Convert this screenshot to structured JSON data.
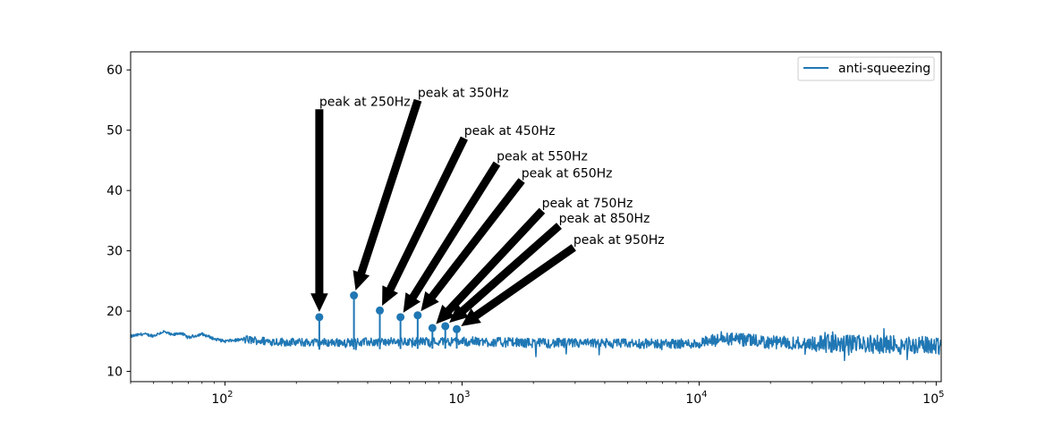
{
  "chart_data": {
    "type": "line",
    "title": "",
    "xlabel": "",
    "ylabel": "",
    "x_scale": "log",
    "xlim": [
      40,
      105000
    ],
    "ylim": [
      8.3,
      63
    ],
    "grid": false,
    "legend": {
      "placement": "top-right",
      "entries": [
        "anti-squeezing"
      ]
    },
    "colors": {
      "series": "#1f77b4",
      "arrow": "#000000"
    },
    "x_ticks": [
      {
        "value": 100,
        "base": "10",
        "exp": "2"
      },
      {
        "value": 1000,
        "base": "10",
        "exp": "3"
      },
      {
        "value": 10000,
        "base": "10",
        "exp": "4"
      },
      {
        "value": 100000,
        "base": "10",
        "exp": "5"
      }
    ],
    "y_ticks": [
      {
        "value": 10,
        "label": "10"
      },
      {
        "value": 20,
        "label": "20"
      },
      {
        "value": 30,
        "label": "30"
      },
      {
        "value": 40,
        "label": "40"
      },
      {
        "value": 50,
        "label": "50"
      },
      {
        "value": 60,
        "label": "60"
      }
    ],
    "series": [
      {
        "name": "anti-squeezing",
        "baseline": [
          [
            40,
            15.8
          ],
          [
            45,
            16.2
          ],
          [
            50,
            15.9
          ],
          [
            55,
            16.6
          ],
          [
            60,
            16.0
          ],
          [
            65,
            16.4
          ],
          [
            70,
            15.6
          ],
          [
            80,
            16.2
          ],
          [
            90,
            15.4
          ],
          [
            100,
            15.0
          ],
          [
            120,
            15.3
          ],
          [
            150,
            15.0
          ],
          [
            200,
            14.8
          ],
          [
            300,
            14.8
          ],
          [
            500,
            14.9
          ],
          [
            1000,
            15.0
          ],
          [
            2000,
            14.7
          ],
          [
            5000,
            14.6
          ],
          [
            10000,
            14.6
          ],
          [
            13000,
            15.4
          ],
          [
            20000,
            14.8
          ],
          [
            50000,
            14.5
          ],
          [
            100000,
            14.3
          ],
          [
            105000,
            14.3
          ]
        ]
      }
    ],
    "peaks": [
      {
        "f": 250,
        "value": 19.0,
        "label": "peak at 250Hz"
      },
      {
        "f": 350,
        "value": 22.6,
        "label": "peak at 350Hz"
      },
      {
        "f": 450,
        "value": 20.1,
        "label": "peak at 450Hz"
      },
      {
        "f": 550,
        "value": 19.0,
        "label": "peak at 550Hz"
      },
      {
        "f": 650,
        "value": 19.3,
        "label": "peak at 650Hz"
      },
      {
        "f": 750,
        "value": 17.2,
        "label": "peak at 750Hz"
      },
      {
        "f": 850,
        "value": 17.5,
        "label": "peak at 850Hz"
      },
      {
        "f": 950,
        "value": 17.0,
        "label": "peak at 950Hz"
      }
    ],
    "annotations": [
      {
        "text": "peak at 250Hz",
        "target_f": 250,
        "target_y": 19.0,
        "text_f": 250,
        "text_y": 54
      },
      {
        "text": "peak at 350Hz",
        "target_f": 350,
        "target_y": 22.6,
        "text_f": 650,
        "text_y": 55.5
      },
      {
        "text": "peak at 450Hz",
        "target_f": 450,
        "target_y": 20.1,
        "text_f": 1020,
        "text_y": 49.2
      },
      {
        "text": "peak at 550Hz",
        "target_f": 550,
        "target_y": 19.0,
        "text_f": 1400,
        "text_y": 45
      },
      {
        "text": "peak at 650Hz",
        "target_f": 650,
        "target_y": 19.3,
        "text_f": 1780,
        "text_y": 42.2
      },
      {
        "text": "peak at 750Hz",
        "target_f": 750,
        "target_y": 17.2,
        "text_f": 2170,
        "text_y": 37.2
      },
      {
        "text": "peak at 850Hz",
        "target_f": 850,
        "target_y": 17.5,
        "text_f": 2560,
        "text_y": 34.7
      },
      {
        "text": "peak at 950Hz",
        "target_f": 950,
        "target_y": 17.0,
        "text_f": 2950,
        "text_y": 31.1
      }
    ]
  }
}
